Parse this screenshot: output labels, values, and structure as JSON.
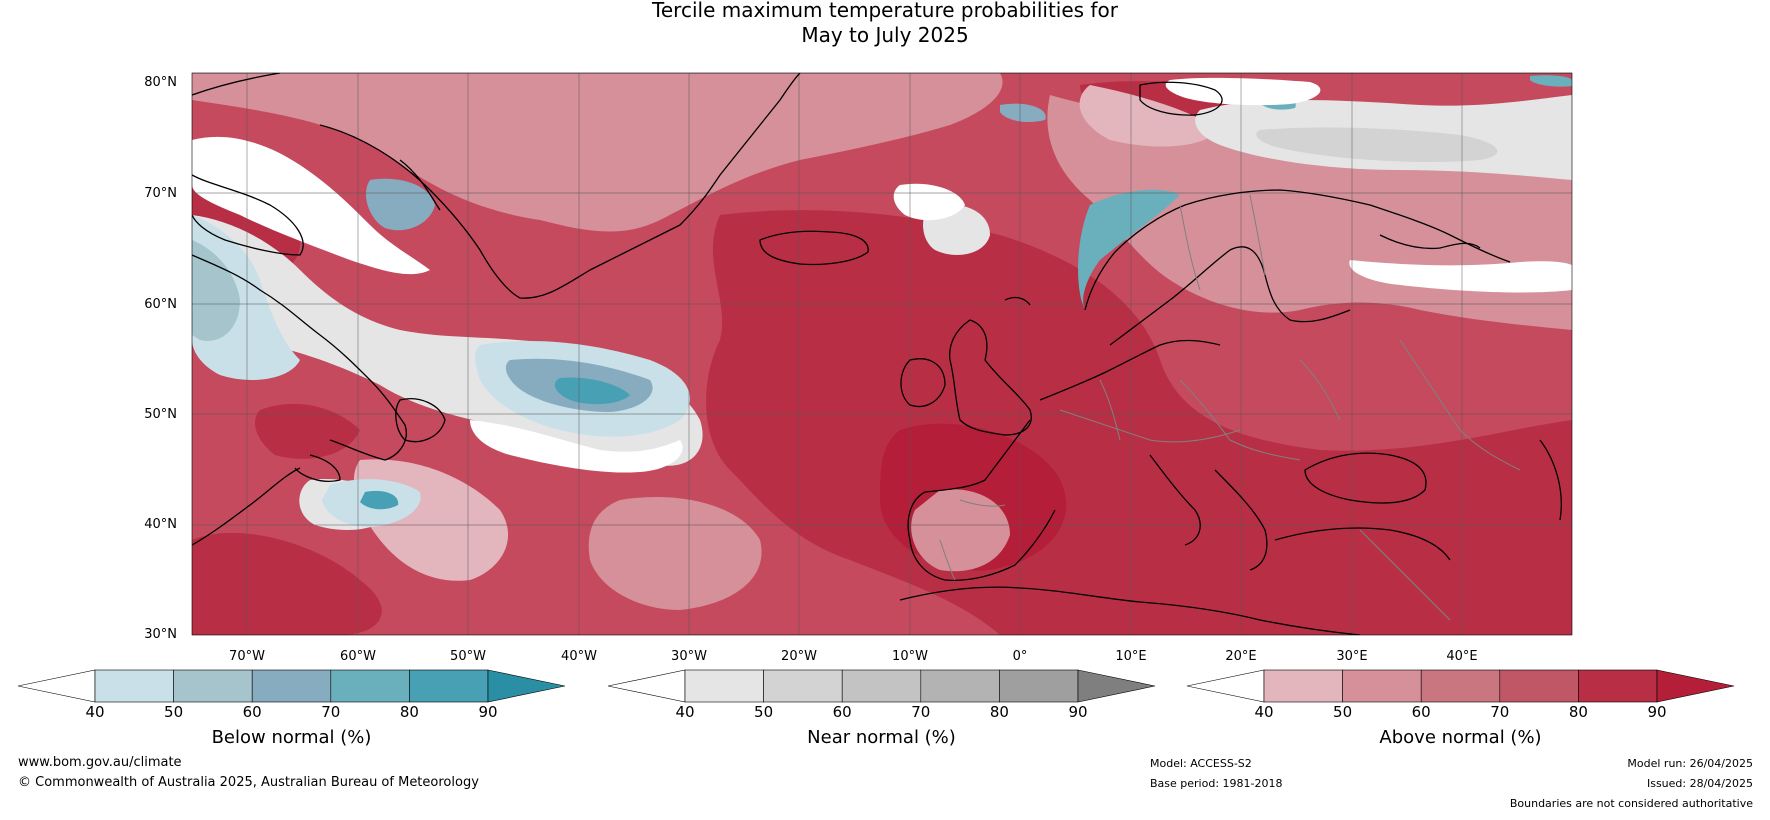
{
  "title": {
    "line1": "Tercile maximum temperature probabilities for",
    "line2": "May to July 2025"
  },
  "map": {
    "lat_labels": [
      "80°N",
      "70°N",
      "60°N",
      "50°N",
      "40°N",
      "30°N"
    ],
    "lon_labels": [
      "70°W",
      "60°W",
      "50°W",
      "40°W",
      "30°W",
      "20°W",
      "10°W",
      "0°",
      "10°E",
      "20°E",
      "30°E",
      "40°E"
    ],
    "colors": {
      "ocean_dominant": "#c2334a",
      "coast": "#000000",
      "borders": "#808080",
      "grid": "#555555"
    }
  },
  "colorbars": [
    {
      "title": "Below normal (%)",
      "ticks": [
        "40",
        "50",
        "60",
        "70",
        "80",
        "90"
      ],
      "colors": [
        "#ffffff",
        "#c9e0e8",
        "#a5c4cc",
        "#87acc0",
        "#6aafbc",
        "#48a0b5",
        "#2a8fa5"
      ]
    },
    {
      "title": "Near normal (%)",
      "ticks": [
        "40",
        "50",
        "60",
        "70",
        "80",
        "90"
      ],
      "colors": [
        "#ffffff",
        "#e5e5e5",
        "#d3d3d3",
        "#c3c3c3",
        "#b3b3b3",
        "#9f9f9f",
        "#7f7f7f"
      ]
    },
    {
      "title": "Above normal (%)",
      "ticks": [
        "40",
        "50",
        "60",
        "70",
        "80",
        "90"
      ],
      "colors": [
        "#ffffff",
        "#e3b5bd",
        "#d5909a",
        "#c97680",
        "#c05767",
        "#b82f45",
        "#b41e38"
      ]
    }
  ],
  "footer": {
    "website": "www.bom.gov.au/climate",
    "copyright": "© Commonwealth of Australia 2025, Australian Bureau of Meteorology",
    "model": "Model: ACCESS-S2",
    "base_period": "Base period: 1981-2018",
    "model_run": "Model run: 26/04/2025",
    "issued": "Issued: 28/04/2025",
    "disclaimer": "Boundaries are not considered authoritative"
  }
}
